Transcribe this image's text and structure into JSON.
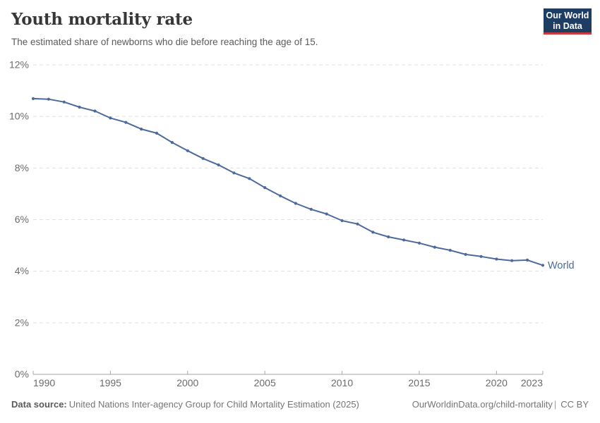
{
  "header": {
    "title": "Youth mortality rate",
    "subtitle": "The estimated share of newborns who die before reaching the age of 15.",
    "logo": {
      "line1": "Our World",
      "line2": "in Data",
      "bg_color": "#1d3d63",
      "stripe_color": "#cc3b3b"
    }
  },
  "chart_data": {
    "type": "line",
    "title": "Youth mortality rate",
    "unit": "%",
    "grid": "horizontal-dashed",
    "legend_position": "end-of-line-label",
    "xlim": [
      1990,
      2023
    ],
    "ylim": [
      0,
      12
    ],
    "x_ticks": [
      1990,
      1995,
      2000,
      2005,
      2010,
      2015,
      2020,
      2023
    ],
    "y_ticks": [
      {
        "value": 0,
        "label": "0%"
      },
      {
        "value": 2,
        "label": "2%"
      },
      {
        "value": 4,
        "label": "4%"
      },
      {
        "value": 6,
        "label": "6%"
      },
      {
        "value": 8,
        "label": "8%"
      },
      {
        "value": 10,
        "label": "10%"
      },
      {
        "value": 12,
        "label": "12%"
      }
    ],
    "x": [
      1990,
      1991,
      1992,
      1993,
      1994,
      1995,
      1996,
      1997,
      1998,
      1999,
      2000,
      2001,
      2002,
      2003,
      2004,
      2005,
      2006,
      2007,
      2008,
      2009,
      2010,
      2011,
      2012,
      2013,
      2014,
      2015,
      2016,
      2017,
      2018,
      2019,
      2020,
      2021,
      2022,
      2023
    ],
    "series": [
      {
        "name": "World",
        "color": "#4C6A9C",
        "values": [
          10.69,
          10.67,
          10.56,
          10.36,
          10.21,
          9.94,
          9.77,
          9.51,
          9.35,
          8.99,
          8.67,
          8.37,
          8.12,
          7.81,
          7.59,
          7.24,
          6.92,
          6.63,
          6.4,
          6.22,
          5.96,
          5.83,
          5.51,
          5.33,
          5.21,
          5.09,
          4.93,
          4.81,
          4.65,
          4.57,
          4.47,
          4.41,
          4.43,
          4.23
        ]
      }
    ]
  },
  "footer": {
    "data_source_label": "Data source:",
    "data_source": "United Nations Inter-agency Group for Child Mortality Estimation (2025)",
    "link": "OurWorldinData.org/child-mortality",
    "separator": "|",
    "license": "CC BY"
  }
}
